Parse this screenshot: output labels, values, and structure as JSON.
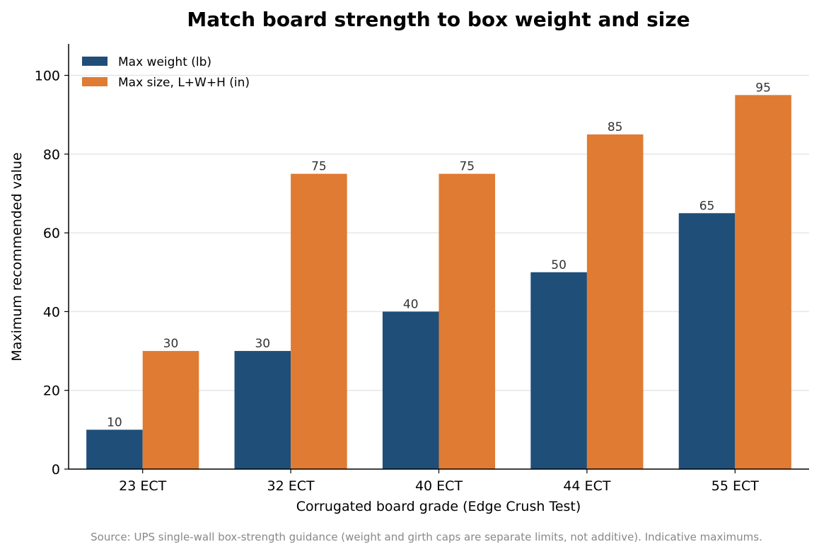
{
  "chart_data": {
    "type": "bar",
    "title": "Match board strength to box weight and size",
    "xlabel": "Corrugated board grade (Edge Crush Test)",
    "ylabel": "Maximum recommended value",
    "categories": [
      "23 ECT",
      "32 ECT",
      "40 ECT",
      "44 ECT",
      "55 ECT"
    ],
    "series": [
      {
        "name": "Max weight (lb)",
        "values": [
          10,
          30,
          40,
          50,
          65
        ],
        "color": "#1f4e79"
      },
      {
        "name": "Max size, L+W+H (in)",
        "values": [
          30,
          75,
          75,
          85,
          95
        ],
        "color": "#e07b33"
      }
    ],
    "ylim": [
      0,
      108
    ],
    "yticks": [
      0,
      20,
      40,
      60,
      80,
      100
    ],
    "grid": "horizontal",
    "legend": "top-left",
    "data_labels": true
  },
  "source_note": "Source: UPS single-wall box-strength guidance (weight and girth caps are separate limits, not additive). Indicative maximums."
}
